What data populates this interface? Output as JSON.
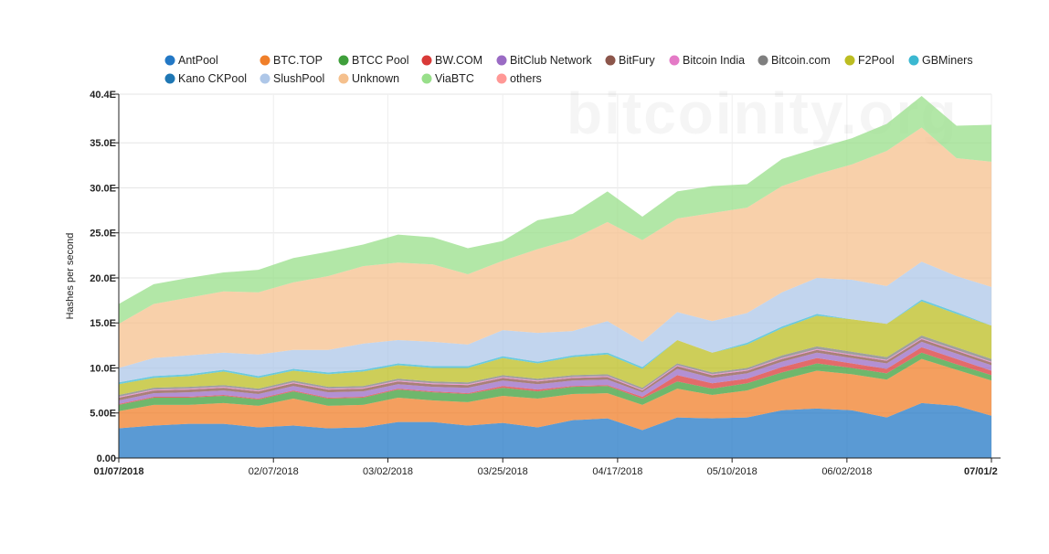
{
  "watermark": "bitcoinity.org",
  "chart_data": {
    "type": "area",
    "stacked": true,
    "title": "",
    "xlabel": "",
    "ylabel": "Hashes per second",
    "ylim": [
      0,
      40.4
    ],
    "y_unit": "E",
    "yticks": [
      0,
      5,
      10,
      15,
      20,
      25,
      30,
      35,
      40.4
    ],
    "ytick_labels": [
      "0.00",
      "5.00E",
      "10.0E",
      "15.0E",
      "20.0E",
      "25.0E",
      "30.0E",
      "35.0E",
      "40.4E"
    ],
    "x": [
      "01/07/2018",
      "01/14/2018",
      "01/21/2018",
      "01/28/2018",
      "02/04/2018",
      "02/11/2018",
      "02/18/2018",
      "02/25/2018",
      "03/04/2018",
      "03/11/2018",
      "03/18/2018",
      "03/25/2018",
      "04/01/2018",
      "04/08/2018",
      "04/15/2018",
      "04/22/2018",
      "04/29/2018",
      "05/06/2018",
      "05/13/2018",
      "05/20/2018",
      "05/27/2018",
      "06/03/2018",
      "06/10/2018",
      "06/17/2018",
      "06/24/2018",
      "07/01/2018"
    ],
    "xtick_labels": [
      {
        "label": "01/07/2018",
        "index": 0,
        "bold": true
      },
      {
        "label": "02/07/2018",
        "index": 4.43,
        "bold": false
      },
      {
        "label": "03/02/2018",
        "index": 7.71,
        "bold": false
      },
      {
        "label": "03/25/2018",
        "index": 11.0,
        "bold": false
      },
      {
        "label": "04/17/2018",
        "index": 14.29,
        "bold": false
      },
      {
        "label": "05/10/2018",
        "index": 17.57,
        "bold": false
      },
      {
        "label": "06/02/2018",
        "index": 20.86,
        "bold": false
      },
      {
        "label": "07/01/2",
        "index": 25,
        "bold": true
      }
    ],
    "legend_position": "top",
    "grid": true,
    "series": [
      {
        "name": "AntPool",
        "color": "#2378c5",
        "values": [
          3.3,
          3.6,
          3.8,
          3.8,
          3.4,
          3.6,
          3.3,
          3.4,
          4.0,
          4.0,
          3.6,
          3.9,
          3.4,
          4.2,
          4.4,
          3.1,
          4.5,
          4.4,
          4.5,
          5.3,
          5.5,
          5.3,
          4.5,
          6.1,
          5.8,
          4.7
        ]
      },
      {
        "name": "BTC.TOP",
        "color": "#f07f2a",
        "values": [
          1.9,
          2.3,
          2.1,
          2.3,
          2.4,
          3.0,
          2.5,
          2.5,
          2.7,
          2.4,
          2.6,
          3.0,
          3.2,
          2.9,
          2.8,
          2.8,
          3.2,
          2.6,
          3.0,
          3.4,
          4.2,
          4.0,
          4.2,
          4.9,
          4.0,
          3.9
        ]
      },
      {
        "name": "BTCC Pool",
        "color": "#3f9f3b",
        "values": [
          0.7,
          0.8,
          0.8,
          0.8,
          0.7,
          0.8,
          0.8,
          0.8,
          0.9,
          0.9,
          0.9,
          0.9,
          0.8,
          0.8,
          0.8,
          0.7,
          0.8,
          0.7,
          0.8,
          0.8,
          0.8,
          0.7,
          0.7,
          0.7,
          0.6,
          0.6
        ]
      },
      {
        "name": "BW.COM",
        "color": "#d93a38",
        "values": [
          0.1,
          0.1,
          0.1,
          0.1,
          0.1,
          0.1,
          0.1,
          0.1,
          0.1,
          0.1,
          0.1,
          0.2,
          0.2,
          0.1,
          0.1,
          0.2,
          0.7,
          0.6,
          0.5,
          0.6,
          0.6,
          0.5,
          0.5,
          0.6,
          0.6,
          0.5
        ]
      },
      {
        "name": "BitClub Network",
        "color": "#9a6bc4",
        "values": [
          0.4,
          0.4,
          0.5,
          0.5,
          0.5,
          0.5,
          0.6,
          0.6,
          0.5,
          0.5,
          0.6,
          0.6,
          0.6,
          0.6,
          0.6,
          0.5,
          0.7,
          0.6,
          0.6,
          0.6,
          0.6,
          0.6,
          0.6,
          0.6,
          0.6,
          0.6
        ]
      },
      {
        "name": "BitFury",
        "color": "#8c564b",
        "values": [
          0.3,
          0.3,
          0.3,
          0.3,
          0.3,
          0.3,
          0.3,
          0.3,
          0.3,
          0.3,
          0.3,
          0.3,
          0.3,
          0.3,
          0.3,
          0.2,
          0.3,
          0.3,
          0.3,
          0.3,
          0.3,
          0.3,
          0.3,
          0.3,
          0.3,
          0.3
        ]
      },
      {
        "name": "Bitcoin India",
        "color": "#e47ac6",
        "values": [
          0.1,
          0.1,
          0.1,
          0.1,
          0.1,
          0.1,
          0.1,
          0.1,
          0.1,
          0.1,
          0.1,
          0.1,
          0.1,
          0.1,
          0.1,
          0.1,
          0.1,
          0.1,
          0.1,
          0.1,
          0.1,
          0.1,
          0.1,
          0.1,
          0.1,
          0.1
        ]
      },
      {
        "name": "Bitcoin.com",
        "color": "#7f7f7f",
        "values": [
          0.2,
          0.2,
          0.2,
          0.2,
          0.2,
          0.2,
          0.2,
          0.2,
          0.2,
          0.2,
          0.2,
          0.2,
          0.2,
          0.2,
          0.2,
          0.2,
          0.2,
          0.2,
          0.2,
          0.3,
          0.3,
          0.3,
          0.3,
          0.3,
          0.3,
          0.3
        ]
      },
      {
        "name": "F2Pool",
        "color": "#bcbd22",
        "values": [
          1.2,
          1.1,
          1.2,
          1.5,
          1.2,
          1.1,
          1.4,
          1.6,
          1.5,
          1.5,
          1.6,
          1.9,
          1.7,
          2.0,
          2.2,
          2.1,
          2.6,
          2.2,
          2.6,
          3.0,
          3.4,
          3.6,
          3.7,
          3.8,
          3.7,
          3.7
        ]
      },
      {
        "name": "GBMiners",
        "color": "#3bb8d1",
        "values": [
          0.2,
          0.2,
          0.2,
          0.2,
          0.2,
          0.2,
          0.2,
          0.2,
          0.2,
          0.2,
          0.2,
          0.2,
          0.2,
          0.2,
          0.2,
          0.2,
          0.0,
          0.0,
          0.2,
          0.2,
          0.2,
          0.0,
          0.0,
          0.2,
          0.2,
          0.0
        ]
      },
      {
        "name": "Kano CKPool",
        "color": "#1f77b4",
        "values": [
          0.0,
          0.0,
          0.0,
          0.0,
          0.0,
          0.0,
          0.0,
          0.0,
          0.0,
          0.0,
          0.0,
          0.0,
          0.0,
          0.0,
          0.0,
          0.0,
          0.0,
          0.0,
          0.0,
          0.0,
          0.0,
          0.0,
          0.0,
          0.0,
          0.0,
          0.0
        ]
      },
      {
        "name": "SlushPool",
        "color": "#aec7e8",
        "values": [
          1.6,
          2.0,
          2.1,
          1.9,
          2.4,
          2.1,
          2.5,
          2.9,
          2.6,
          2.7,
          2.4,
          2.9,
          3.2,
          2.7,
          3.5,
          2.8,
          3.1,
          3.5,
          3.3,
          3.8,
          4.0,
          4.4,
          4.2,
          4.2,
          4.0,
          4.3
        ]
      },
      {
        "name": "Unknown",
        "color": "#f5c08d",
        "values": [
          4.9,
          6.0,
          6.4,
          6.8,
          6.9,
          7.5,
          8.2,
          8.6,
          8.6,
          8.6,
          7.8,
          7.7,
          9.3,
          10.2,
          11.0,
          11.3,
          10.4,
          12.0,
          11.7,
          11.8,
          11.5,
          12.8,
          15.0,
          14.9,
          13.1,
          13.9
        ]
      },
      {
        "name": "ViaBTC",
        "color": "#98df8a",
        "values": [
          2.2,
          2.2,
          2.2,
          2.1,
          2.5,
          2.7,
          2.7,
          2.4,
          3.1,
          3.0,
          2.9,
          2.2,
          3.2,
          2.8,
          3.4,
          2.6,
          3.0,
          3.0,
          2.6,
          3.0,
          2.9,
          2.9,
          3.0,
          3.5,
          3.6,
          4.1
        ]
      },
      {
        "name": "others",
        "color": "#ff9896",
        "values": [
          0.0,
          0.0,
          0.0,
          0.0,
          0.0,
          0.0,
          0.0,
          0.0,
          0.0,
          0.0,
          0.0,
          0.0,
          0.0,
          0.0,
          0.0,
          0.0,
          0.0,
          0.0,
          0.0,
          0.0,
          0.0,
          0.0,
          0.0,
          0.0,
          0.0,
          0.0
        ]
      }
    ]
  }
}
